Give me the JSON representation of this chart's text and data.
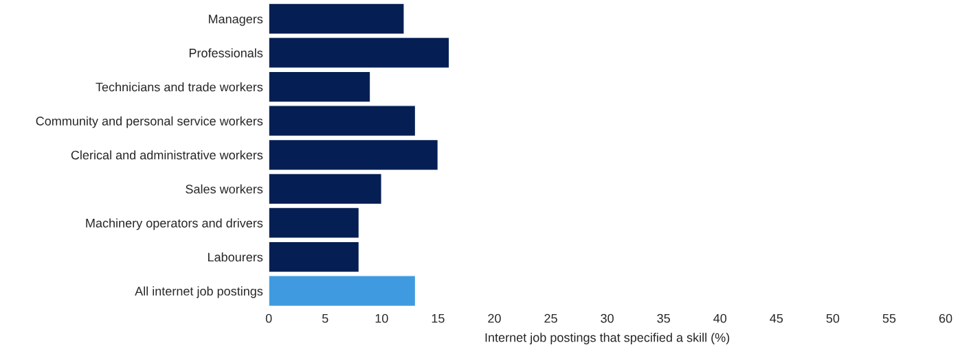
{
  "chart_data": {
    "type": "bar",
    "orientation": "horizontal",
    "xlabel": "Internet job postings that specified a skill (%)",
    "categories": [
      "Managers",
      "Professionals",
      "Technicians and trade workers",
      "Community and personal service workers",
      "Clerical and administrative workers",
      "Sales workers",
      "Machinery operators and drivers",
      "Labourers",
      "All internet job postings"
    ],
    "values": [
      12,
      16,
      9,
      13,
      15,
      10,
      8,
      8,
      13
    ],
    "colors": [
      "#051f54",
      "#051f54",
      "#051f54",
      "#051f54",
      "#051f54",
      "#051f54",
      "#051f54",
      "#051f54",
      "#409ae0"
    ],
    "xlim": [
      0,
      60
    ],
    "xticks": [
      0,
      5,
      10,
      15,
      20,
      25,
      30,
      35,
      40,
      45,
      50,
      55,
      60
    ],
    "grid": false,
    "legend": false
  }
}
